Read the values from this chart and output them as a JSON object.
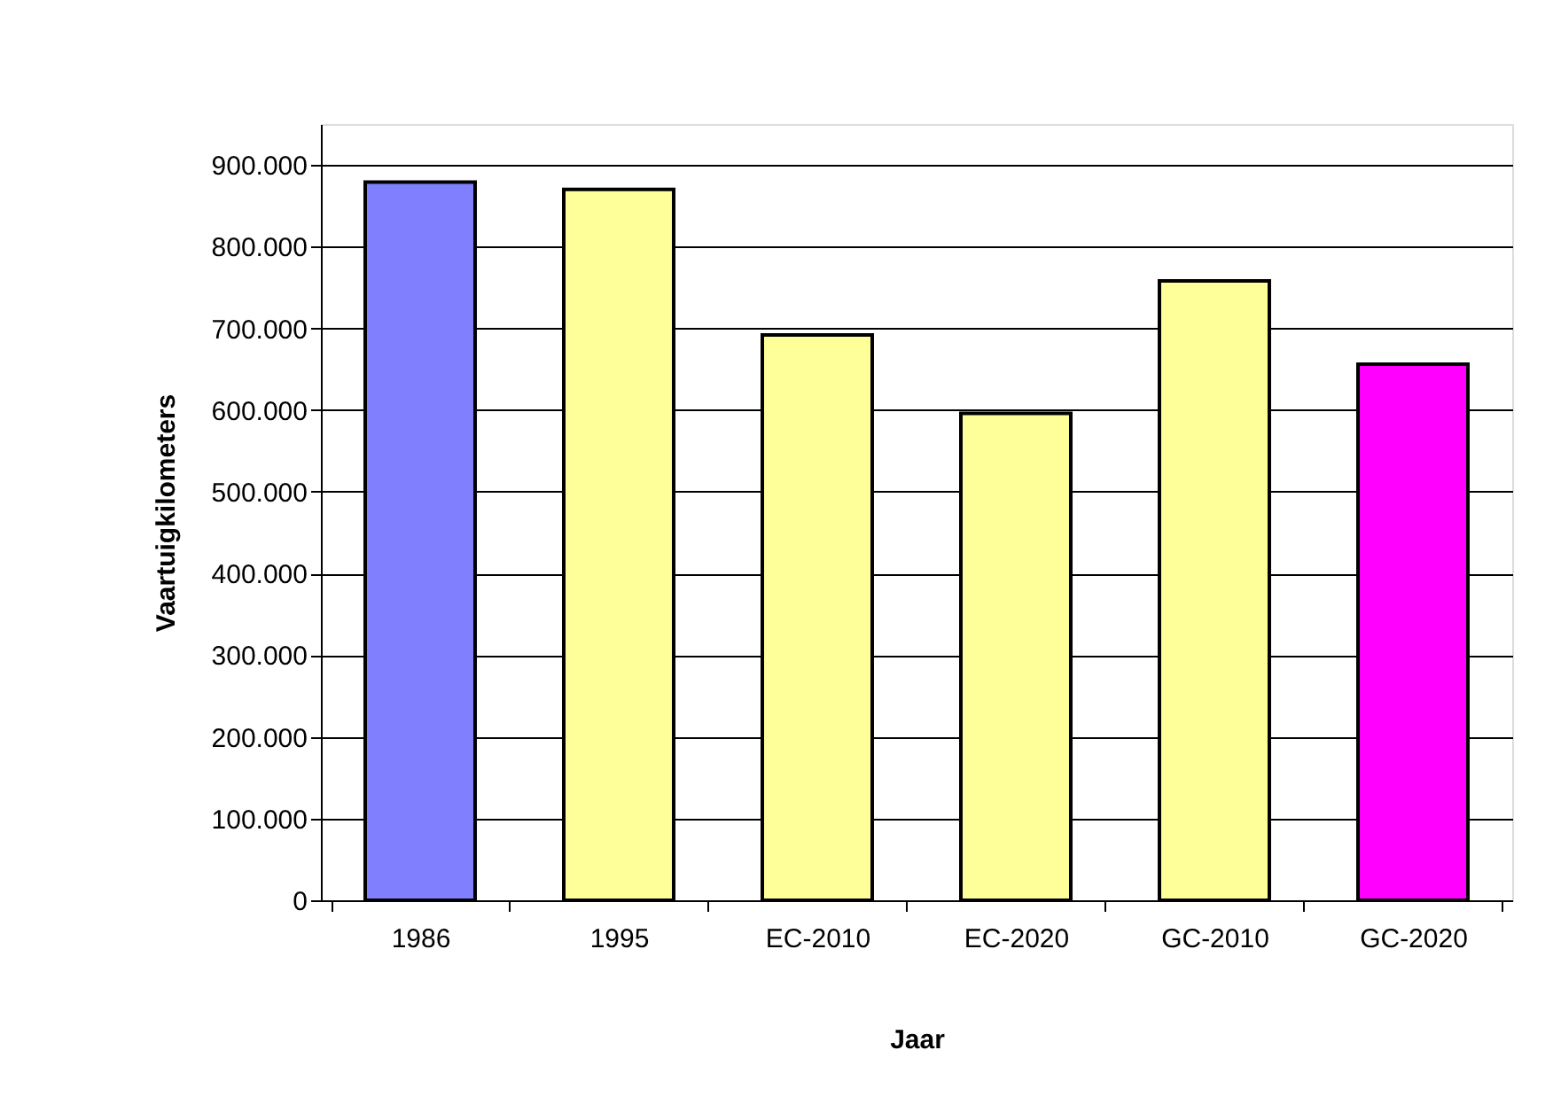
{
  "chart_data": {
    "type": "bar",
    "xlabel": "Jaar",
    "ylabel": "Vaartuigkilometers",
    "categories": [
      "1986",
      "1995",
      "EC-2010",
      "EC-2020",
      "GC-2010",
      "GC-2020"
    ],
    "values": [
      879000,
      870000,
      692000,
      596000,
      758000,
      656000
    ],
    "colors": [
      "#8080ff",
      "#ffff99",
      "#ffff99",
      "#ffff99",
      "#ffff99",
      "#ff00ff"
    ],
    "ylim": [
      0,
      950000
    ],
    "yticks": [
      {
        "value": 0,
        "label": "0"
      },
      {
        "value": 100000,
        "label": "100.000"
      },
      {
        "value": 200000,
        "label": "200.000"
      },
      {
        "value": 300000,
        "label": "300.000"
      },
      {
        "value": 400000,
        "label": "400.000"
      },
      {
        "value": 500000,
        "label": "500.000"
      },
      {
        "value": 600000,
        "label": "600.000"
      },
      {
        "value": 700000,
        "label": "700.000"
      },
      {
        "value": 800000,
        "label": "800.000"
      },
      {
        "value": 900000,
        "label": "900.000"
      }
    ],
    "grid": "y"
  }
}
